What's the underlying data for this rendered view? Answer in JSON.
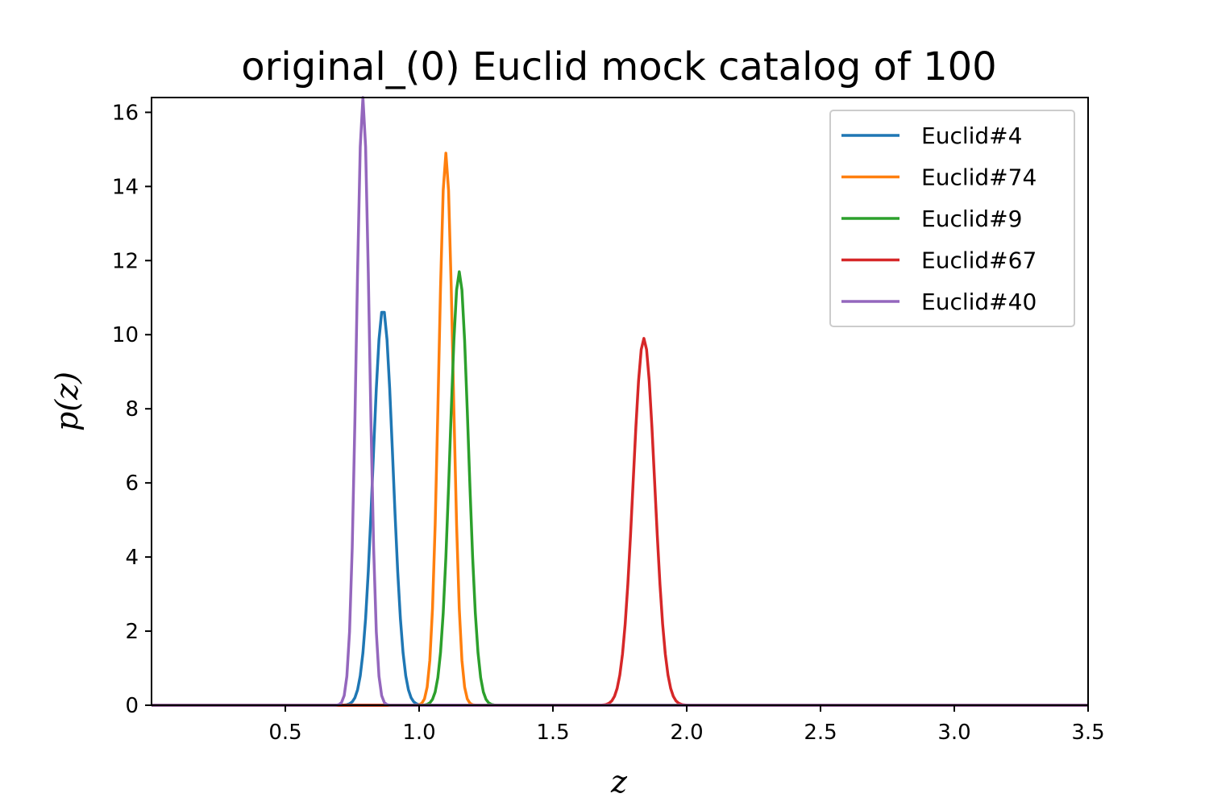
{
  "chart_data": {
    "type": "line",
    "title": "original_(0) Euclid mock catalog of 100",
    "xlabel": "z",
    "ylabel": "p(z)",
    "xlim": [
      0.0,
      3.5
    ],
    "ylim": [
      0,
      16.4
    ],
    "xticks": [
      0.5,
      1.0,
      1.5,
      2.0,
      2.5,
      3.0,
      3.5
    ],
    "xtick_labels": [
      "0.5",
      "1.0",
      "1.5",
      "2.0",
      "2.5",
      "3.0",
      "3.5"
    ],
    "yticks": [
      0,
      2,
      4,
      6,
      8,
      10,
      12,
      14,
      16
    ],
    "ytick_labels": [
      "0",
      "2",
      "4",
      "6",
      "8",
      "10",
      "12",
      "14",
      "16"
    ],
    "grid": false,
    "legend_position": "top-right",
    "series": [
      {
        "name": "Euclid#4",
        "color": "#1f77b4",
        "peak_z": 0.865,
        "peak_p": 10.7
      },
      {
        "name": "Euclid#74",
        "color": "#ff7f0e",
        "peak_z": 1.1,
        "peak_p": 14.9
      },
      {
        "name": "Euclid#9",
        "color": "#2ca02c",
        "peak_z": 1.15,
        "peak_p": 11.7
      },
      {
        "name": "Euclid#67",
        "color": "#d62728",
        "peak_z": 1.84,
        "peak_p": 9.9
      },
      {
        "name": "Euclid#40",
        "color": "#9467bd",
        "peak_z": 0.79,
        "peak_p": 16.4
      }
    ]
  }
}
